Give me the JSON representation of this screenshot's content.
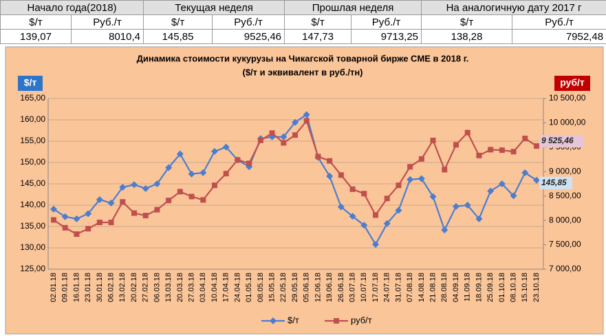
{
  "table": {
    "headers": [
      "Начало года(2018)",
      "Текущая неделя",
      "Прошлая неделя",
      "На аналогичную дату 2017 г"
    ],
    "subheaders": [
      "$/т",
      "Руб./т",
      "$/т",
      "Руб./т",
      "$/т",
      "Руб./т",
      "$/т",
      "Руб./т"
    ],
    "values": [
      "139,07",
      "8010,4",
      "145,85",
      "9525,46",
      "147,73",
      "9713,25",
      "138,28",
      "7952,48"
    ]
  },
  "chart_data": {
    "type": "line",
    "title": "Динамика стоимости кукурузы на Чикагской товарной бирже CME в 2018  г.",
    "subtitle": "($/т и эквивалент в руб./тн)",
    "y_label": "$/т",
    "y2_label": "руб/т",
    "categories": [
      "02.01.18",
      "09.01.18",
      "16.01.18",
      "23.01.18",
      "30.01.18",
      "06.02.18",
      "13.02.18",
      "20.02.18",
      "27.02.18",
      "06.03.18",
      "13.03.18",
      "20.03.18",
      "27.03.18",
      "03.04.18",
      "10.04.18",
      "17.04.18",
      "24.04.18",
      "01.05.18",
      "08.05.18",
      "15.05.18",
      "22.05.18",
      "29.05.18",
      "05.06.18",
      "12.06.18",
      "19.06.18",
      "26.06.18",
      "03.07.18",
      "10.07.18",
      "17.07.18",
      "24.07.18",
      "31.07.18",
      "07.08.18",
      "14.08.18",
      "21.08.18",
      "28.08.18",
      "04.09.18",
      "11.09.18",
      "18.09.18",
      "25.09.18",
      "01.10.18",
      "08.10.18",
      "15.10.18",
      "23.10.18"
    ],
    "series": [
      {
        "name": "$/т",
        "color": "#4a7ecf",
        "axis": "y",
        "values": [
          139.07,
          137.3,
          136.8,
          138.0,
          141.3,
          140.5,
          144.2,
          144.8,
          143.9,
          145.0,
          148.8,
          152.0,
          147.3,
          147.6,
          152.6,
          153.6,
          150.6,
          149.0,
          155.6,
          156.0,
          156.0,
          159.4,
          161.2,
          151.2,
          146.8,
          139.6,
          137.4,
          135.3,
          130.8,
          135.7,
          138.8,
          146.0,
          146.2,
          142.0,
          134.2,
          139.7,
          140.0,
          136.8,
          143.3,
          145.0,
          142.2,
          147.6,
          145.85
        ],
        "value_labels": [
          null,
          null,
          null,
          null,
          null,
          null,
          null,
          null,
          null,
          null,
          null,
          null,
          null,
          null,
          null,
          null,
          null,
          null,
          null,
          null,
          null,
          null,
          null,
          null,
          null,
          null,
          null,
          null,
          null,
          null,
          null,
          null,
          null,
          null,
          null,
          null,
          null,
          null,
          null,
          null,
          null,
          null,
          "145,85"
        ]
      },
      {
        "name": "руб/т",
        "color": "#c0504d",
        "axis": "y2",
        "values": [
          8010.4,
          7850,
          7720,
          7830,
          7960,
          7960,
          8380,
          8150,
          8100,
          8220,
          8410,
          8590,
          8490,
          8420,
          8720,
          8960,
          9240,
          9170,
          9640,
          9790,
          9590,
          9750,
          10040,
          9310,
          9220,
          8930,
          8640,
          8550,
          8110,
          8450,
          8720,
          9100,
          9260,
          9640,
          9040,
          9550,
          9800,
          9330,
          9450,
          9440,
          9410,
          9680,
          9525.46
        ],
        "value_labels": [
          null,
          null,
          null,
          null,
          null,
          null,
          null,
          null,
          null,
          null,
          null,
          null,
          null,
          null,
          null,
          null,
          null,
          null,
          null,
          null,
          null,
          null,
          null,
          null,
          null,
          null,
          null,
          null,
          null,
          null,
          null,
          null,
          null,
          null,
          null,
          null,
          null,
          null,
          null,
          null,
          null,
          null,
          "9 525,46"
        ]
      }
    ],
    "ylim": [
      125,
      165
    ],
    "yticks": [
      {
        "value": 125,
        "label": "125,00"
      },
      {
        "value": 130,
        "label": "130,00"
      },
      {
        "value": 135,
        "label": "135,00"
      },
      {
        "value": 140,
        "label": "140,00"
      },
      {
        "value": 145,
        "label": "145,00"
      },
      {
        "value": 150,
        "label": "150,00"
      },
      {
        "value": 155,
        "label": "155,00"
      },
      {
        "value": 160,
        "label": "160,00"
      },
      {
        "value": 165,
        "label": "165,00"
      }
    ],
    "y2lim": [
      7000,
      10500
    ],
    "y2ticks": [
      {
        "value": 7000,
        "label": "7 000,00"
      },
      {
        "value": 7500,
        "label": "7 500,00"
      },
      {
        "value": 8000,
        "label": "8 000,00"
      },
      {
        "value": 8500,
        "label": "8 500,00"
      },
      {
        "value": 9000,
        "label": "9 000,00"
      },
      {
        "value": 9500,
        "label": "9 500,00"
      },
      {
        "value": 10000,
        "label": "10 000,00"
      },
      {
        "value": 10500,
        "label": "10 500,00"
      }
    ],
    "grid": true,
    "legend": "bottom"
  }
}
